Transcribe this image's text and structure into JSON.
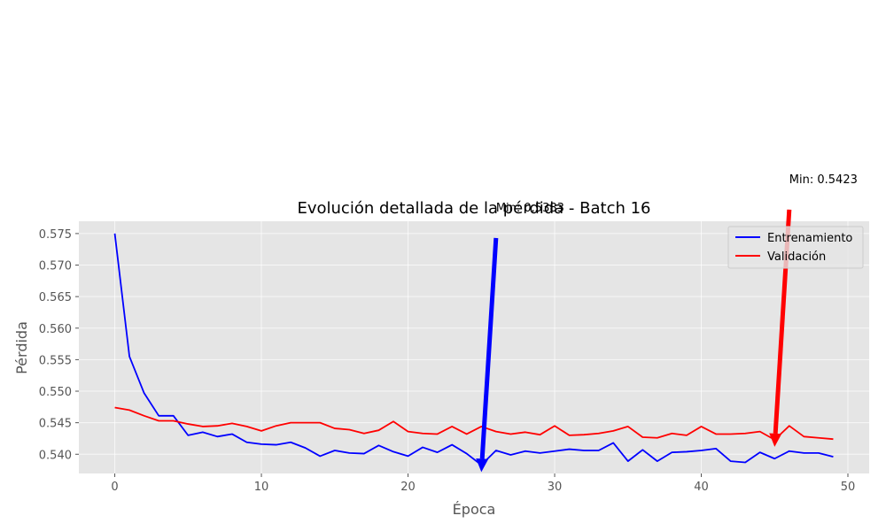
{
  "chart_data": {
    "type": "line",
    "title": "Evolución detallada de la pérdida - Batch 16",
    "xlabel": "Época",
    "ylabel": "Pérdida",
    "xlim": [
      -2.45,
      51.45
    ],
    "ylim": [
      0.53695,
      0.57695
    ],
    "xticks": [
      0,
      10,
      20,
      30,
      40,
      50
    ],
    "yticks": [
      0.54,
      0.545,
      0.55,
      0.555,
      0.56,
      0.565,
      0.57,
      0.575
    ],
    "grid": true,
    "legend_position": "top-right",
    "x": [
      0,
      1,
      2,
      3,
      4,
      5,
      6,
      7,
      8,
      9,
      10,
      11,
      12,
      13,
      14,
      15,
      16,
      17,
      18,
      19,
      20,
      21,
      22,
      23,
      24,
      25,
      26,
      27,
      28,
      29,
      30,
      31,
      32,
      33,
      34,
      35,
      36,
      37,
      38,
      39,
      40,
      41,
      42,
      43,
      44,
      45,
      46,
      47,
      48,
      49
    ],
    "series": [
      {
        "name": "Entrenamiento",
        "color": "#0000ff",
        "values": [
          0.575,
          0.5555,
          0.5497,
          0.5461,
          0.5461,
          0.543,
          0.5435,
          0.5428,
          0.5432,
          0.5419,
          0.5416,
          0.5415,
          0.5419,
          0.541,
          0.5397,
          0.5406,
          0.5402,
          0.5401,
          0.5414,
          0.5404,
          0.5397,
          0.5411,
          0.5403,
          0.5415,
          0.5401,
          0.5383,
          0.5406,
          0.5399,
          0.5405,
          0.5402,
          0.5405,
          0.5408,
          0.5406,
          0.5406,
          0.5418,
          0.5389,
          0.5407,
          0.5389,
          0.5403,
          0.5404,
          0.5406,
          0.5409,
          0.5389,
          0.5387,
          0.5403,
          0.5393,
          0.5405,
          0.5402,
          0.5402,
          0.5396
        ]
      },
      {
        "name": "Validación",
        "color": "#ff0000",
        "values": [
          0.5474,
          0.547,
          0.5461,
          0.5453,
          0.5453,
          0.5448,
          0.5444,
          0.5445,
          0.5449,
          0.5444,
          0.5437,
          0.5445,
          0.545,
          0.545,
          0.545,
          0.5441,
          0.5439,
          0.5433,
          0.5438,
          0.5452,
          0.5436,
          0.5433,
          0.5432,
          0.5444,
          0.5432,
          0.5444,
          0.5436,
          0.5432,
          0.5435,
          0.5431,
          0.5445,
          0.543,
          0.5431,
          0.5433,
          0.5437,
          0.5444,
          0.5427,
          0.5426,
          0.5433,
          0.543,
          0.5444,
          0.5432,
          0.5432,
          0.5433,
          0.5436,
          0.5423,
          0.5445,
          0.5428,
          0.5426,
          0.5424
        ]
      }
    ],
    "annotations": [
      {
        "text": "Min: 0.5383",
        "color": "#0000ff",
        "point": [
          25,
          0.5383
        ],
        "text_at": [
          26,
          0.5785
        ]
      },
      {
        "text": "Min: 0.5423",
        "color": "#ff0000",
        "point": [
          45,
          0.5423
        ],
        "text_at": [
          46,
          0.583
        ]
      }
    ]
  }
}
